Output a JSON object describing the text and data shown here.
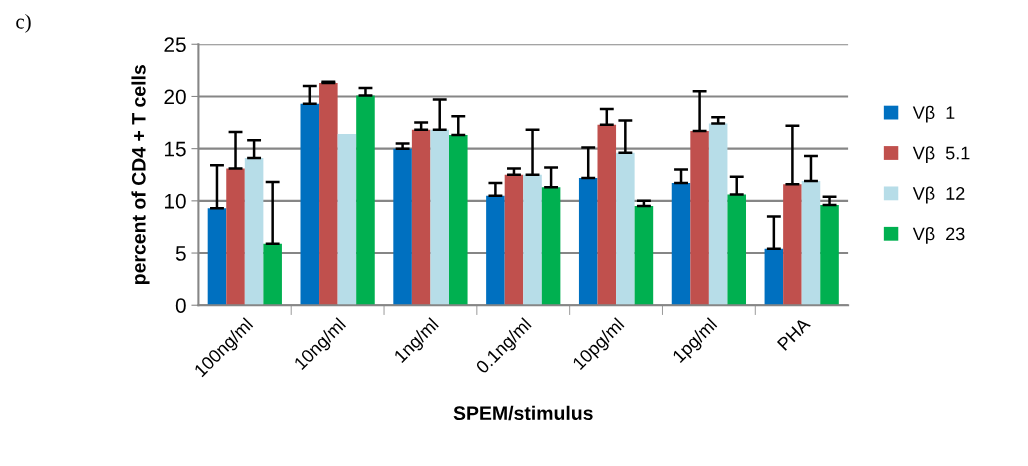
{
  "chart_data": {
    "type": "bar",
    "categories": [
      "100ng/ml",
      "10ng/ml",
      "1ng/ml",
      "0.1ng/ml",
      "10pg/ml",
      "1pg/ml",
      "PHA"
    ],
    "xlabel": "SPEM/stimulus",
    "ylabel": "percent of CD4 + T cells",
    "annotations": [
      "c)"
    ],
    "ylim": [
      0,
      25
    ],
    "yticks": [
      0,
      5,
      10,
      15,
      20,
      25
    ],
    "grid": "y",
    "legend": "right",
    "series": [
      {
        "name": "Vβ  1",
        "color": "#0070c0",
        "values": [
          9.3,
          19.3,
          15.0,
          10.5,
          12.2,
          11.7,
          5.4
        ],
        "errors": [
          [
            9.3,
            13.4
          ],
          [
            19.3,
            21.0
          ],
          [
            15.0,
            15.5
          ],
          [
            10.5,
            11.7
          ],
          [
            12.2,
            15.1
          ],
          [
            11.7,
            13.0
          ],
          [
            5.4,
            8.5
          ]
        ]
      },
      {
        "name": "Vβ  5.1",
        "color": "#c0504d",
        "values": [
          13.1,
          21.3,
          16.8,
          12.5,
          17.3,
          16.7,
          11.6
        ],
        "errors": [
          [
            13.1,
            16.6
          ],
          [
            21.3,
            21.4
          ],
          [
            16.8,
            17.5
          ],
          [
            12.5,
            13.1
          ],
          [
            17.3,
            18.8
          ],
          [
            16.7,
            20.5
          ],
          [
            11.6,
            17.2
          ]
        ]
      },
      {
        "name": "Vβ  12",
        "color": "#b7dde8",
        "values": [
          14.1,
          16.4,
          16.8,
          12.5,
          14.6,
          17.4,
          11.9
        ],
        "errors": [
          [
            14.1,
            15.8
          ],
          null,
          [
            16.8,
            19.7
          ],
          [
            12.5,
            16.8
          ],
          [
            14.6,
            17.7
          ],
          [
            17.4,
            18.0
          ],
          [
            11.9,
            14.3
          ]
        ]
      },
      {
        "name": "Vβ  23",
        "color": "#00b050",
        "values": [
          5.9,
          20.1,
          16.3,
          11.3,
          9.5,
          10.6,
          9.6
        ],
        "errors": [
          [
            5.9,
            11.8
          ],
          [
            20.1,
            20.8
          ],
          [
            16.3,
            18.1
          ],
          [
            11.3,
            13.2
          ],
          [
            9.5,
            10.0
          ],
          [
            10.6,
            12.3
          ],
          [
            9.6,
            10.4
          ]
        ]
      }
    ]
  }
}
